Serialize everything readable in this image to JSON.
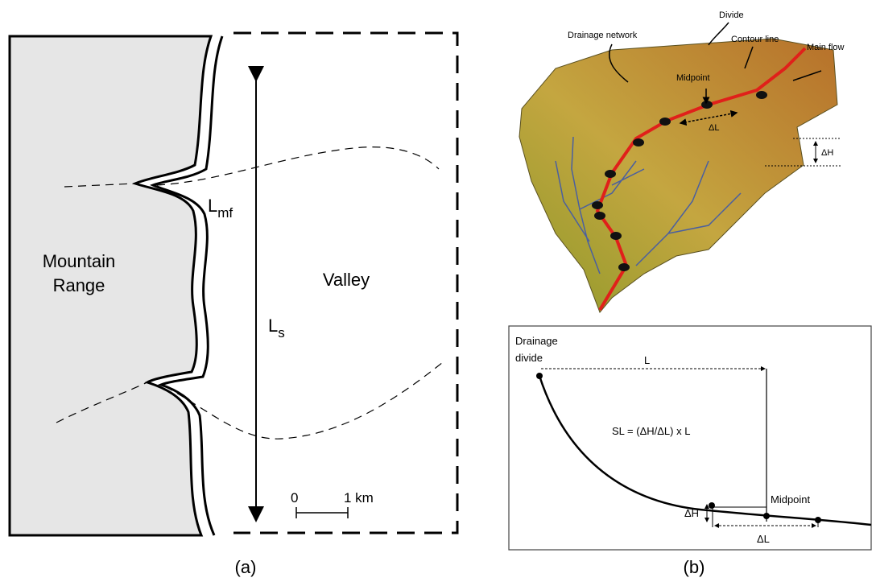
{
  "panel_a": {
    "mountain": [
      "Mountain",
      "Range"
    ],
    "valley": "Valley",
    "lmf": {
      "main": "L",
      "sub": "mf"
    },
    "ls": {
      "main": "L",
      "sub": "s"
    },
    "scale_start": "0",
    "scale_end": "1 km",
    "caption": "(a)"
  },
  "panel_b": {
    "labels": {
      "divide": "Divide",
      "drainage_network": "Drainage network",
      "contour_line": "Contour line",
      "main_flow": "Main flow",
      "midpoint": "Midpoint",
      "delta_l": "ΔL",
      "delta_h": "ΔH"
    },
    "profile": {
      "drainage_divide": [
        "Drainage",
        "divide"
      ],
      "l": "L",
      "formula": "SL = (ΔH/ΔL) x L",
      "midpoint": "Midpoint",
      "delta_h": "ΔH",
      "delta_l": "ΔL"
    },
    "caption": "(b)"
  }
}
